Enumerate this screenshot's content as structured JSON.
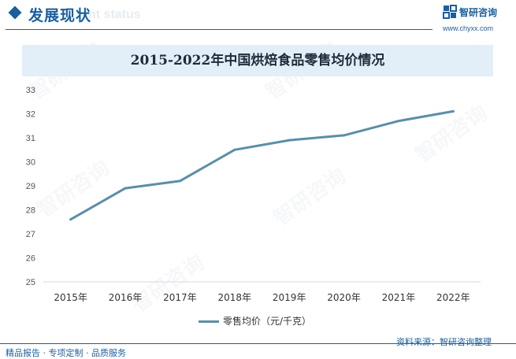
{
  "header": {
    "section_title": "发展现状",
    "section_subtitle": "nt status"
  },
  "logo": {
    "name": "智研咨询",
    "url": "www.chyxx.com",
    "icon": "chyxx-logo-icon"
  },
  "watermark": "智研咨询",
  "footer": {
    "left": "精品报告 · 专项定制 · 品质服务",
    "right": "资料来源：智研咨询整理"
  },
  "colors": {
    "brand": "#1a5f9e",
    "title_band": "#e3eff8",
    "series_line": "#5b8ea6"
  },
  "chart_data": {
    "type": "line",
    "title": "2015-2022年中国烘焙食品零售均价情况",
    "categories": [
      "2015年",
      "2016年",
      "2017年",
      "2018年",
      "2019年",
      "2020年",
      "2021年",
      "2022年"
    ],
    "series": [
      {
        "name": "零售均价（元/千克）",
        "values": [
          27.6,
          28.9,
          29.2,
          30.5,
          30.9,
          31.1,
          31.7,
          32.1
        ]
      }
    ],
    "ylim": [
      25,
      33
    ],
    "yticks": [
      25,
      26,
      27,
      28,
      29,
      30,
      31,
      32,
      33
    ],
    "xlabel": "",
    "ylabel": "",
    "grid": false,
    "legend": "bottom"
  }
}
